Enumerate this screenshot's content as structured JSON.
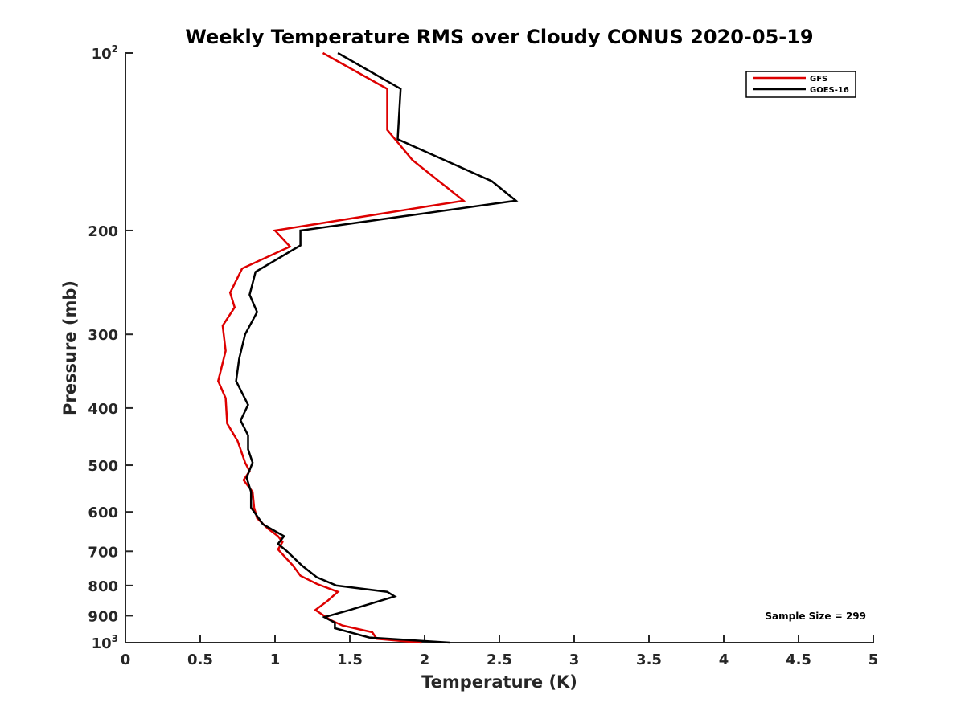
{
  "chart_data": {
    "type": "line",
    "title": "Weekly Temperature RMS over Cloudy CONUS 2020-05-19",
    "xlabel": "Temperature (K)",
    "ylabel": "Pressure (mb)",
    "xlim": [
      0,
      5
    ],
    "ylim": [
      100,
      1000
    ],
    "y_scale": "log",
    "y_reversed": true,
    "grid": false,
    "legend_position": "top-right",
    "x_ticks": [
      "0",
      "0.5",
      "1",
      "1.5",
      "2",
      "2.5",
      "3",
      "3.5",
      "4",
      "4.5",
      "5"
    ],
    "y_ticks": [
      {
        "value": 100,
        "base": "10",
        "exp": "2"
      },
      {
        "value": 200,
        "base": "200",
        "exp": ""
      },
      {
        "value": 300,
        "base": "300",
        "exp": ""
      },
      {
        "value": 400,
        "base": "400",
        "exp": ""
      },
      {
        "value": 500,
        "base": "500",
        "exp": ""
      },
      {
        "value": 600,
        "base": "600",
        "exp": ""
      },
      {
        "value": 700,
        "base": "700",
        "exp": ""
      },
      {
        "value": 800,
        "base": "800",
        "exp": ""
      },
      {
        "value": 900,
        "base": "900",
        "exp": ""
      },
      {
        "value": 1000,
        "base": "10",
        "exp": "3"
      }
    ],
    "annotation": "Sample Size = 299",
    "series": [
      {
        "name": "GFS",
        "color": "#dd0000",
        "points": [
          [
            1.32,
            100
          ],
          [
            1.75,
            115
          ],
          [
            1.75,
            135
          ],
          [
            1.92,
            152
          ],
          [
            2.26,
            178
          ],
          [
            1.0,
            200
          ],
          [
            1.1,
            213
          ],
          [
            0.78,
            232
          ],
          [
            0.7,
            255
          ],
          [
            0.73,
            270
          ],
          [
            0.65,
            290
          ],
          [
            0.67,
            320
          ],
          [
            0.62,
            360
          ],
          [
            0.67,
            385
          ],
          [
            0.68,
            425
          ],
          [
            0.75,
            455
          ],
          [
            0.8,
            495
          ],
          [
            0.83,
            512
          ],
          [
            0.79,
            530
          ],
          [
            0.85,
            555
          ],
          [
            0.86,
            590
          ],
          [
            0.88,
            615
          ],
          [
            0.95,
            640
          ],
          [
            1.02,
            660
          ],
          [
            1.05,
            675
          ],
          [
            1.02,
            695
          ],
          [
            1.12,
            740
          ],
          [
            1.17,
            770
          ],
          [
            1.28,
            795
          ],
          [
            1.42,
            820
          ],
          [
            1.35,
            850
          ],
          [
            1.27,
            880
          ],
          [
            1.37,
            915
          ],
          [
            1.45,
            935
          ],
          [
            1.65,
            960
          ],
          [
            1.68,
            985
          ],
          [
            1.98,
            1000
          ]
        ]
      },
      {
        "name": "GOES-16",
        "color": "#000000",
        "points": [
          [
            1.42,
            100
          ],
          [
            1.84,
            115
          ],
          [
            1.82,
            140
          ],
          [
            2.45,
            165
          ],
          [
            2.61,
            178
          ],
          [
            1.17,
            200
          ],
          [
            1.17,
            212
          ],
          [
            0.87,
            235
          ],
          [
            0.83,
            257
          ],
          [
            0.88,
            275
          ],
          [
            0.8,
            300
          ],
          [
            0.76,
            330
          ],
          [
            0.74,
            360
          ],
          [
            0.82,
            395
          ],
          [
            0.77,
            420
          ],
          [
            0.82,
            445
          ],
          [
            0.82,
            470
          ],
          [
            0.85,
            495
          ],
          [
            0.81,
            525
          ],
          [
            0.84,
            555
          ],
          [
            0.84,
            590
          ],
          [
            0.92,
            630
          ],
          [
            1.06,
            660
          ],
          [
            1.02,
            680
          ],
          [
            1.08,
            700
          ],
          [
            1.18,
            740
          ],
          [
            1.28,
            775
          ],
          [
            1.41,
            800
          ],
          [
            1.75,
            820
          ],
          [
            1.8,
            835
          ],
          [
            1.5,
            880
          ],
          [
            1.33,
            905
          ],
          [
            1.4,
            925
          ],
          [
            1.4,
            945
          ],
          [
            1.63,
            980
          ],
          [
            2.17,
            1000
          ]
        ]
      }
    ]
  }
}
